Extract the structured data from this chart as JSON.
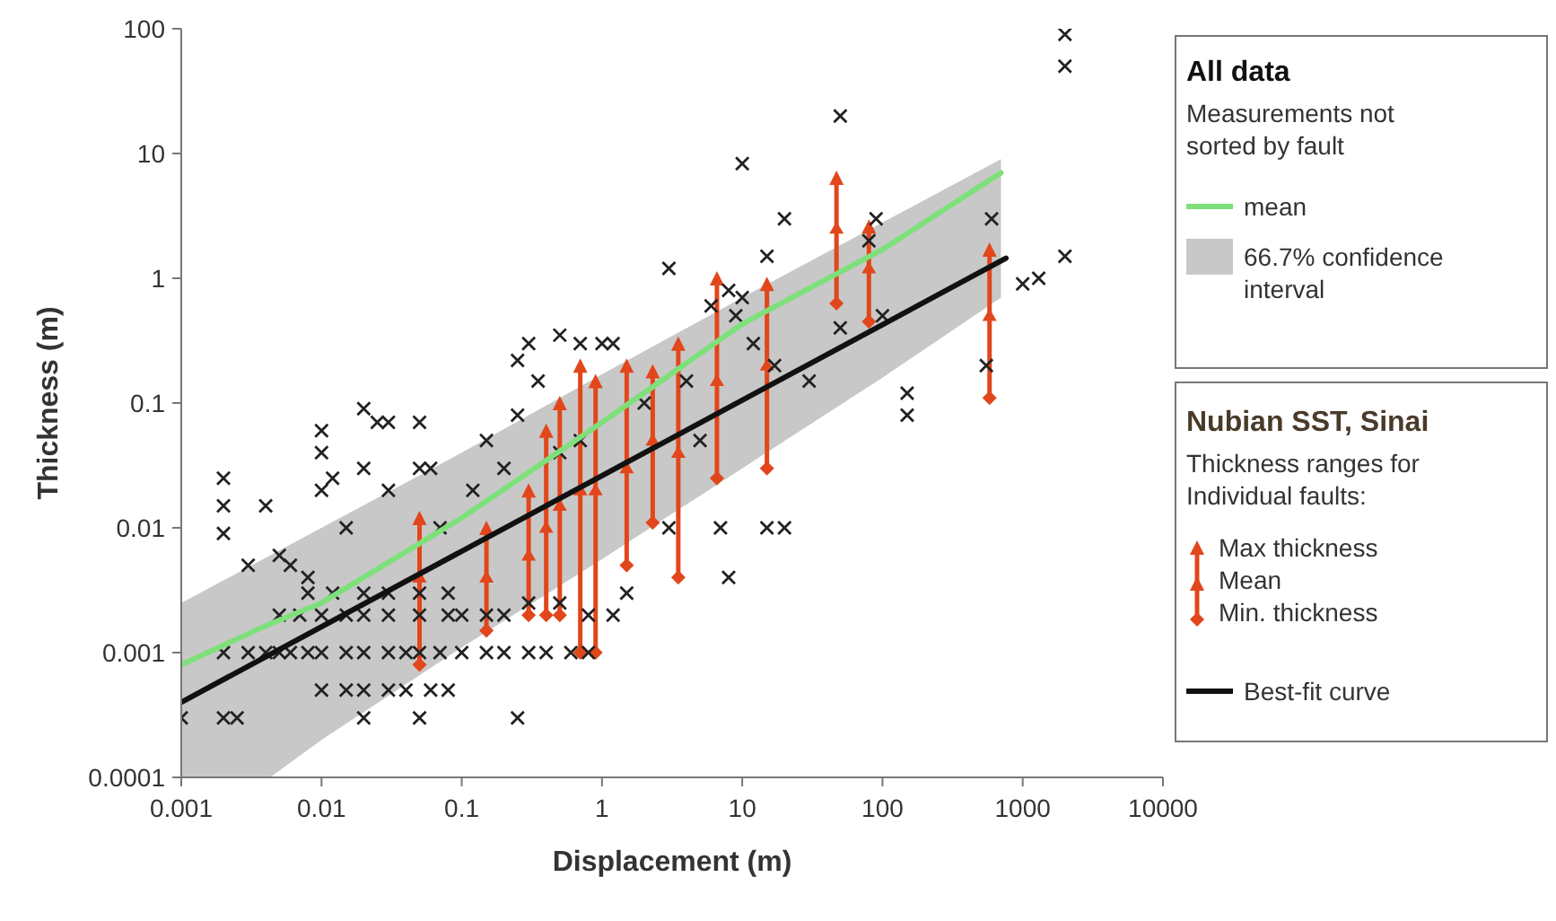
{
  "chart_data": {
    "type": "scatter",
    "xlabel": "Displacement (m)",
    "ylabel": "Thickness (m)",
    "log": "xy",
    "grid": false,
    "legend": "right",
    "xlim": [
      0.001,
      10000
    ],
    "ylim": [
      0.0001,
      100
    ],
    "xticks": [
      0.001,
      0.01,
      0.1,
      1,
      10,
      100,
      1000,
      10000
    ],
    "yticks": [
      0.0001,
      0.001,
      0.01,
      0.1,
      1,
      10,
      100
    ],
    "annotations": [
      "All data",
      "Measurements not sorted by fault",
      "66.7% confidence interval",
      "Nubian SST, Sinai",
      "Thickness ranges for Individual faults:",
      "Max thickness",
      "Mean",
      "Min. thickness"
    ],
    "series": [
      {
        "type": "line",
        "name": "mean",
        "color": "#7ee07a",
        "x": [
          0.001,
          0.0043,
          0.01,
          0.1,
          1,
          10,
          100,
          700
        ],
        "values": [
          0.0008,
          0.0017,
          0.0025,
          0.012,
          0.07,
          0.43,
          1.7,
          7
        ],
        "lower": [
          0.0001,
          0.0001,
          0.0002,
          0.0011,
          0.0056,
          0.03,
          0.16,
          0.7
        ],
        "upper": [
          0.0025,
          0.006,
          0.01,
          0.04,
          0.17,
          0.7,
          2.8,
          9
        ]
      },
      {
        "type": "line",
        "name": "Best-fit curve",
        "color": "#111111",
        "x": [
          0.001,
          760
        ],
        "values": [
          0.0004,
          1.45
        ]
      },
      {
        "color": "#222222",
        "marker": "cross",
        "x": [
          0.001,
          0.002,
          0.0025,
          0.002,
          0.002,
          0.002,
          0.003,
          0.004,
          0.005,
          0.006,
          0.008,
          0.01,
          0.01,
          0.01,
          0.012,
          0.015,
          0.02,
          0.02,
          0.025,
          0.03,
          0.03,
          0.05,
          0.05,
          0.06,
          0.07,
          0.002,
          0.003,
          0.004,
          0.005,
          0.006,
          0.008,
          0.01,
          0.015,
          0.02,
          0.03,
          0.04,
          0.05,
          0.07,
          0.01,
          0.015,
          0.02,
          0.03,
          0.04,
          0.06,
          0.08,
          0.1,
          0.15,
          0.2,
          0.3,
          0.4,
          0.6,
          0.8,
          0.005,
          0.007,
          0.01,
          0.015,
          0.02,
          0.03,
          0.05,
          0.08,
          0.1,
          0.15,
          0.2,
          0.3,
          0.5,
          0.8,
          1.2,
          0.008,
          0.012,
          0.02,
          0.03,
          0.05,
          0.08,
          0.02,
          0.05,
          0.25,
          0.15,
          0.25,
          0.3,
          0.5,
          0.7,
          0.25,
          0.35,
          0.12,
          0.2,
          0.5,
          1,
          2,
          1.5,
          3,
          5,
          7,
          6,
          8,
          10,
          3,
          4,
          8,
          9,
          10,
          12,
          15,
          20,
          20,
          15,
          17,
          50,
          50,
          30,
          80,
          90,
          100,
          150,
          150,
          600,
          550,
          1000,
          1300,
          2000,
          2000,
          2000,
          0.7,
          1.2
        ],
        "values": [
          0.0003,
          0.0003,
          0.0003,
          0.025,
          0.015,
          0.009,
          0.005,
          0.015,
          0.006,
          0.005,
          0.004,
          0.06,
          0.04,
          0.02,
          0.025,
          0.01,
          0.09,
          0.03,
          0.07,
          0.07,
          0.02,
          0.07,
          0.03,
          0.03,
          0.01,
          0.001,
          0.001,
          0.001,
          0.001,
          0.001,
          0.001,
          0.001,
          0.001,
          0.001,
          0.001,
          0.001,
          0.001,
          0.001,
          0.0005,
          0.0005,
          0.0005,
          0.0005,
          0.0005,
          0.0005,
          0.0005,
          0.001,
          0.001,
          0.001,
          0.001,
          0.001,
          0.001,
          0.001,
          0.002,
          0.002,
          0.002,
          0.002,
          0.002,
          0.002,
          0.002,
          0.002,
          0.002,
          0.002,
          0.002,
          0.0025,
          0.0025,
          0.002,
          0.002,
          0.003,
          0.003,
          0.003,
          0.003,
          0.003,
          0.003,
          0.0003,
          0.0003,
          0.0003,
          0.05,
          0.22,
          0.3,
          0.35,
          0.3,
          0.08,
          0.15,
          0.02,
          0.03,
          0.04,
          0.3,
          0.1,
          0.003,
          1.2,
          0.05,
          0.01,
          0.6,
          0.8,
          8.3,
          0.01,
          0.15,
          0.004,
          0.5,
          0.7,
          0.3,
          0.01,
          0.01,
          3,
          1.5,
          0.2,
          20,
          0.4,
          0.15,
          2,
          3,
          0.5,
          0.12,
          0.08,
          3,
          0.2,
          0.9,
          1,
          90,
          50,
          1.5,
          0.05,
          0.3
        ]
      },
      {
        "color": "#e2461b",
        "marker": "triangle",
        "x": [
          0.05,
          0.15,
          0.3,
          0.4,
          0.5,
          0.7,
          0.9,
          1.5,
          2.3,
          3.5,
          6.6,
          15,
          47,
          80,
          580
        ],
        "values": [
          0.004,
          0.004,
          0.006,
          0.01,
          0.015,
          0.02,
          0.02,
          0.03,
          0.05,
          0.04,
          0.15,
          0.2,
          2.5,
          1.2,
          0.5
        ],
        "errors": [
          [
            0.0008,
            0.012
          ],
          [
            0.0015,
            0.01
          ],
          [
            0.002,
            0.02
          ],
          [
            0.002,
            0.06
          ],
          [
            0.002,
            0.1
          ],
          [
            0.001,
            0.2
          ],
          [
            0.001,
            0.15
          ],
          [
            0.005,
            0.2
          ],
          [
            0.011,
            0.18
          ],
          [
            0.004,
            0.3
          ],
          [
            0.025,
            1
          ],
          [
            0.03,
            0.9
          ],
          [
            0.63,
            6.4
          ],
          [
            0.45,
            2.6
          ],
          [
            0.11,
            1.7
          ]
        ]
      }
    ]
  }
}
